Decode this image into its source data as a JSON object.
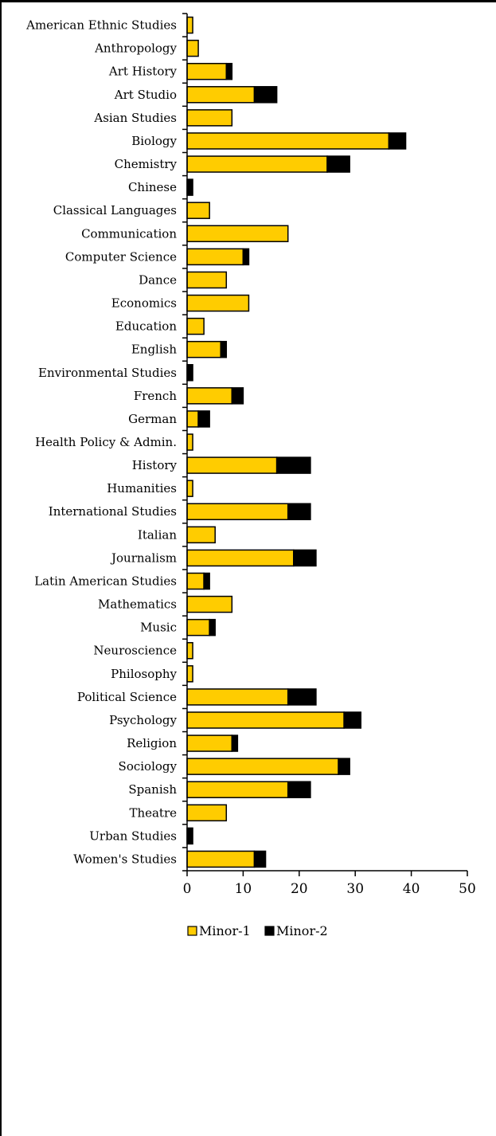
{
  "chart_data": {
    "type": "bar",
    "orientation": "horizontal",
    "stacked": true,
    "categories": [
      "American Ethnic Studies",
      "Anthropology",
      "Art History",
      "Art Studio",
      "Asian Studies",
      "Biology",
      "Chemistry",
      "Chinese",
      "Classical Languages",
      "Communication",
      "Computer Science",
      "Dance",
      "Economics",
      "Education",
      "English",
      "Environmental Studies",
      "French",
      "German",
      "Health Policy & Admin.",
      "History",
      "Humanities",
      "International Studies",
      "Italian",
      "Journalism",
      "Latin American Studies",
      "Mathematics",
      "Music",
      "Neuroscience",
      "Philosophy",
      "Political Science",
      "Psychology",
      "Religion",
      "Sociology",
      "Spanish",
      "Theatre",
      "Urban Studies",
      "Women's Studies"
    ],
    "series": [
      {
        "name": "Minor-1",
        "color": "#FFCC00",
        "values": [
          1,
          2,
          7,
          12,
          8,
          36,
          25,
          0,
          4,
          18,
          10,
          7,
          11,
          3,
          6,
          0,
          8,
          2,
          1,
          16,
          1,
          18,
          5,
          19,
          3,
          8,
          4,
          1,
          1,
          18,
          28,
          8,
          27,
          18,
          7,
          0,
          12
        ]
      },
      {
        "name": "Minor-2",
        "color": "#000000",
        "values": [
          0,
          0,
          1,
          4,
          0,
          3,
          4,
          1,
          0,
          0,
          1,
          0,
          0,
          0,
          1,
          1,
          2,
          2,
          0,
          6,
          0,
          4,
          0,
          4,
          1,
          0,
          1,
          0,
          0,
          5,
          3,
          1,
          2,
          4,
          0,
          1,
          2
        ]
      }
    ],
    "xlim": [
      0,
      50
    ],
    "xticks": [
      "0",
      "10",
      "20",
      "30",
      "40",
      "50"
    ],
    "legend_position": "bottom",
    "grid": false
  }
}
